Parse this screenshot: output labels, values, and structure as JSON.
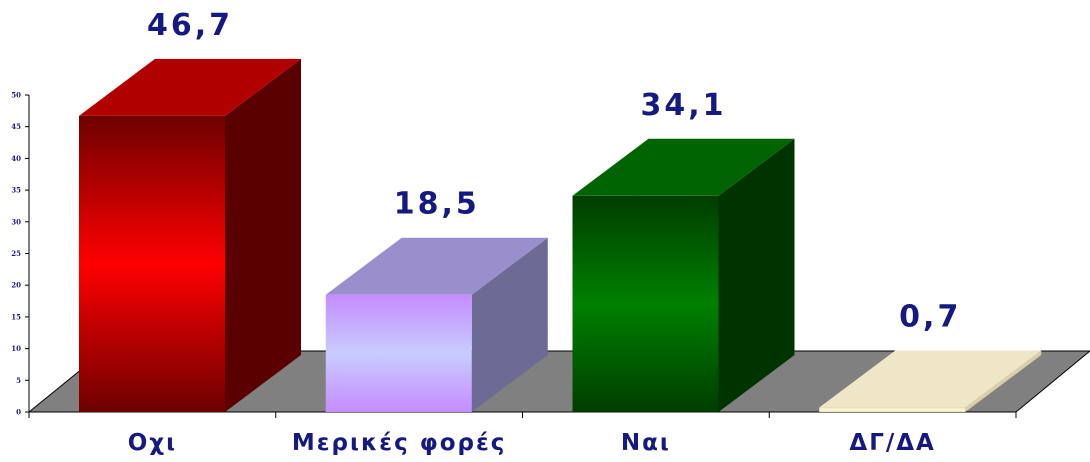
{
  "chart_data": {
    "type": "bar",
    "categories": [
      "Οχι",
      "Μερικές φορές",
      "Ναι",
      "ΔΓ/ΔΑ"
    ],
    "values": [
      46.7,
      18.5,
      34.1,
      0.7
    ],
    "value_labels": [
      "46,7",
      "18,5",
      "34,1",
      "0,7"
    ],
    "ylim": [
      0,
      50
    ],
    "yticks": [
      0,
      5,
      10,
      15,
      20,
      25,
      30,
      35,
      40,
      45,
      50
    ],
    "grid": false,
    "bar_colors": [
      {
        "front_light": "#ff0000",
        "front_dark": "#6e0000",
        "side": "#5a0000",
        "top": "#b00000"
      },
      {
        "front_light": "#c8ccff",
        "front_dark": "#c58cff",
        "side": "#6d6a96",
        "top": "#9a8fcc"
      },
      {
        "front_light": "#008000",
        "front_dark": "#003d00",
        "side": "#003300",
        "top": "#006400"
      },
      {
        "front_light": "#fff8dc",
        "front_dark": "#efe3b8",
        "side": "#d9cfa8",
        "top": "#efe6c8"
      }
    ],
    "floor_color": "#808080"
  }
}
